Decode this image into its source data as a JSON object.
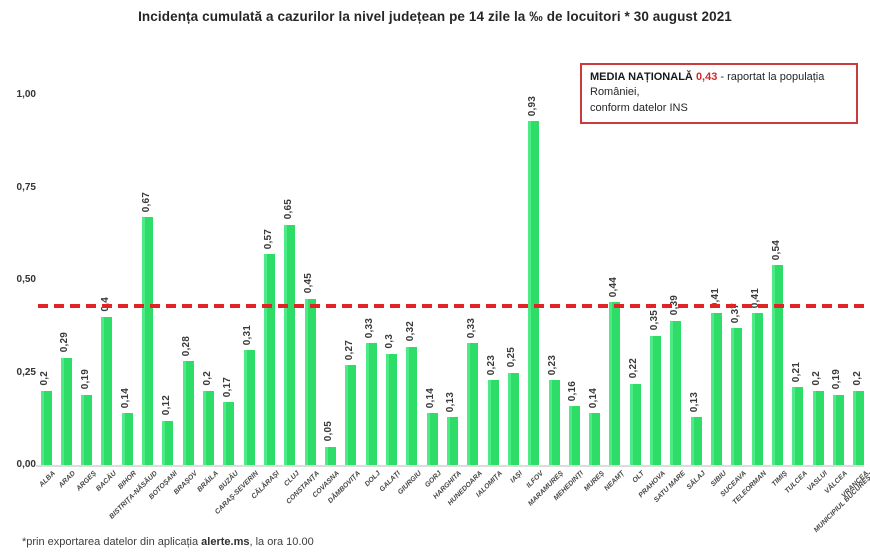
{
  "title": "Incidența cumulată a cazurilor la nivel județean pe 14 zile la ‰ de locuitori * 30 august 2021",
  "legend": {
    "label": "MEDIA NAȚIONALĂ",
    "value": "0,43",
    "text_line1": " - raportat la populația României,",
    "text_line2": "conform datelor INS"
  },
  "y_axis": {
    "ticks": [
      "1,00",
      "0,75",
      "0,50",
      "0,25",
      "0,00"
    ],
    "min": 0,
    "max": 1
  },
  "chart_data": {
    "type": "bar",
    "title": "Incidența cumulată a cazurilor la nivel județean pe 14 zile la ‰ de locuitori * 30 august 2021",
    "xlabel": "",
    "ylabel": "",
    "ylim": [
      0,
      1
    ],
    "unit": "‰",
    "grid": false,
    "bar_color": "#34e170",
    "avg_line_color": "#e02424",
    "national_average": 0.43,
    "categories": [
      "ALBA",
      "ARAD",
      "ARGEȘ",
      "BACĂU",
      "BIHOR",
      "BISTRIȚA-NĂSĂUD",
      "BOTOȘANI",
      "BRAȘOV",
      "BRĂILA",
      "BUZĂU",
      "CARAȘ-SEVERIN",
      "CĂLĂRAȘI",
      "CLUJ",
      "CONSTANȚA",
      "COVASNA",
      "DÂMBOVIȚA",
      "DOLJ",
      "GALAȚI",
      "GIURGIU",
      "GORJ",
      "HARGHITA",
      "HUNEDOARA",
      "IALOMIȚA",
      "IAȘI",
      "ILFOV",
      "MARAMUREȘ",
      "MEHEDINȚI",
      "MUREȘ",
      "NEAMȚ",
      "OLT",
      "PRAHOVA",
      "SATU MARE",
      "SĂLAJ",
      "SIBIU",
      "SUCEAVA",
      "TELEORMAN",
      "TIMIȘ",
      "TULCEA",
      "VASLUI",
      "VÂLCEA",
      "VRANCEA",
      "MUNICIPIUL BUCUREȘTI"
    ],
    "values": [
      0.2,
      0.29,
      0.19,
      0.4,
      0.14,
      0.67,
      0.12,
      0.28,
      0.2,
      0.17,
      0.31,
      0.57,
      0.65,
      0.45,
      0.05,
      0.27,
      0.33,
      0.3,
      0.32,
      0.14,
      0.13,
      0.33,
      0.23,
      0.25,
      0.93,
      0.23,
      0.16,
      0.14,
      0.44,
      0.22,
      0.35,
      0.39,
      0.13,
      0.41,
      0.37,
      0.41,
      0.54,
      0.21,
      0.2,
      0.19,
      0.2,
      null
    ]
  },
  "footnote": {
    "prefix": "*prin exportarea datelor din aplicația ",
    "app": "alerte.ms",
    "suffix": ", la ora 10.00"
  }
}
